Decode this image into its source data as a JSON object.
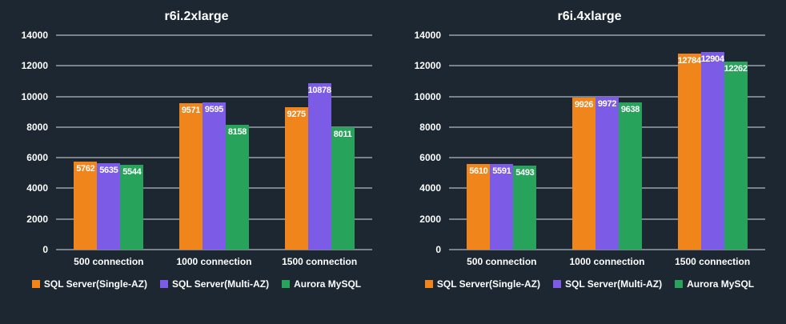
{
  "colors": {
    "background": "#1c2732",
    "gridline": "rgba(255,255,255,0.85)",
    "text": "#ffffff",
    "single_az_orange": "#f0851c",
    "multi_az_purple": "#7c5ce6",
    "aurora_green": "#27a35c"
  },
  "chart_data": [
    {
      "type": "bar",
      "title": "r6i.2xlarge",
      "categories": [
        "500 connection",
        "1000 connection",
        "1500 connection"
      ],
      "series": [
        {
          "name": "SQL Server(Single-AZ)",
          "color": "#f0851c",
          "values": [
            5762,
            9571,
            9275
          ]
        },
        {
          "name": "SQL Server(Multi-AZ)",
          "color": "#7c5ce6",
          "values": [
            5635,
            9595,
            10878
          ]
        },
        {
          "name": "Aurora MySQL",
          "color": "#27a35c",
          "values": [
            5544,
            8158,
            8011
          ]
        }
      ],
      "xlabel": "",
      "ylabel": "",
      "ylim": [
        0,
        14000
      ],
      "ytick_step": 2000,
      "grid": true,
      "legend_position": "bottom"
    },
    {
      "type": "bar",
      "title": "r6i.4xlarge",
      "categories": [
        "500 connection",
        "1000 connection",
        "1500 connection"
      ],
      "series": [
        {
          "name": "SQL Server(Single-AZ)",
          "color": "#f0851c",
          "values": [
            5610,
            9926,
            12784
          ]
        },
        {
          "name": "SQL Server(Multi-AZ)",
          "color": "#7c5ce6",
          "values": [
            5591,
            9972,
            12904
          ]
        },
        {
          "name": "Aurora MySQL",
          "color": "#27a35c",
          "values": [
            5493,
            9638,
            12262
          ]
        }
      ],
      "xlabel": "",
      "ylabel": "",
      "ylim": [
        0,
        14000
      ],
      "ytick_step": 2000,
      "grid": true,
      "legend_position": "bottom"
    }
  ]
}
